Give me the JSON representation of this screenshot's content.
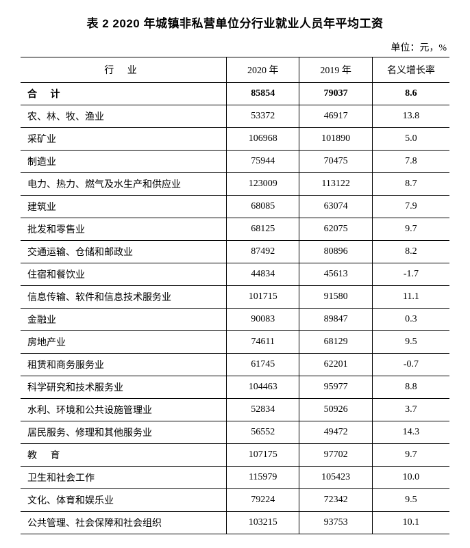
{
  "title": "表 2 2020 年城镇非私营单位分行业就业人员年平均工资",
  "unit": "单位：元，%",
  "columns": {
    "industry": "行 业",
    "year2020": "2020 年",
    "year2019": "2019 年",
    "growth": "名义增长率"
  },
  "total": {
    "label": "合 计",
    "y2020": "85854",
    "y2019": "79037",
    "growth": "8.6"
  },
  "rows": [
    {
      "label": "农、林、牧、渔业",
      "y2020": "53372",
      "y2019": "46917",
      "growth": "13.8"
    },
    {
      "label": "采矿业",
      "y2020": "106968",
      "y2019": "101890",
      "growth": "5.0"
    },
    {
      "label": "制造业",
      "y2020": "75944",
      "y2019": "70475",
      "growth": "7.8"
    },
    {
      "label": "电力、热力、燃气及水生产和供应业",
      "y2020": "123009",
      "y2019": "113122",
      "growth": "8.7"
    },
    {
      "label": "建筑业",
      "y2020": "68085",
      "y2019": "63074",
      "growth": "7.9"
    },
    {
      "label": "批发和零售业",
      "y2020": "68125",
      "y2019": "62075",
      "growth": "9.7"
    },
    {
      "label": "交通运输、仓储和邮政业",
      "y2020": "87492",
      "y2019": "80896",
      "growth": "8.2"
    },
    {
      "label": "住宿和餐饮业",
      "y2020": "44834",
      "y2019": "45613",
      "growth": "-1.7"
    },
    {
      "label": "信息传输、软件和信息技术服务业",
      "y2020": "101715",
      "y2019": "91580",
      "growth": "11.1"
    },
    {
      "label": "金融业",
      "y2020": "90083",
      "y2019": "89847",
      "growth": "0.3"
    },
    {
      "label": "房地产业",
      "y2020": "74611",
      "y2019": "68129",
      "growth": "9.5"
    },
    {
      "label": "租赁和商务服务业",
      "y2020": "61745",
      "y2019": "62201",
      "growth": "-0.7"
    },
    {
      "label": "科学研究和技术服务业",
      "y2020": "104463",
      "y2019": "95977",
      "growth": "8.8"
    },
    {
      "label": "水利、环境和公共设施管理业",
      "y2020": "52834",
      "y2019": "50926",
      "growth": "3.7"
    },
    {
      "label": "居民服务、修理和其他服务业",
      "y2020": "56552",
      "y2019": "49472",
      "growth": "14.3"
    },
    {
      "label": "教 育",
      "y2020": "107175",
      "y2019": "97702",
      "growth": "9.7",
      "edu": true
    },
    {
      "label": "卫生和社会工作",
      "y2020": "115979",
      "y2019": "105423",
      "growth": "10.0"
    },
    {
      "label": "文化、体育和娱乐业",
      "y2020": "79224",
      "y2019": "72342",
      "growth": "9.5"
    },
    {
      "label": "公共管理、社会保障和社会组织",
      "y2020": "103215",
      "y2019": "93753",
      "growth": "10.1"
    }
  ],
  "table_style": {
    "type": "table",
    "border_color": "#000000",
    "background_color": "#ffffff",
    "text_color": "#000000",
    "header_fontsize": 14,
    "body_fontsize": 14,
    "title_fontsize": 17,
    "col_widths_pct": [
      48,
      17,
      17,
      18
    ],
    "col_align": [
      "left",
      "center",
      "center",
      "center"
    ]
  }
}
